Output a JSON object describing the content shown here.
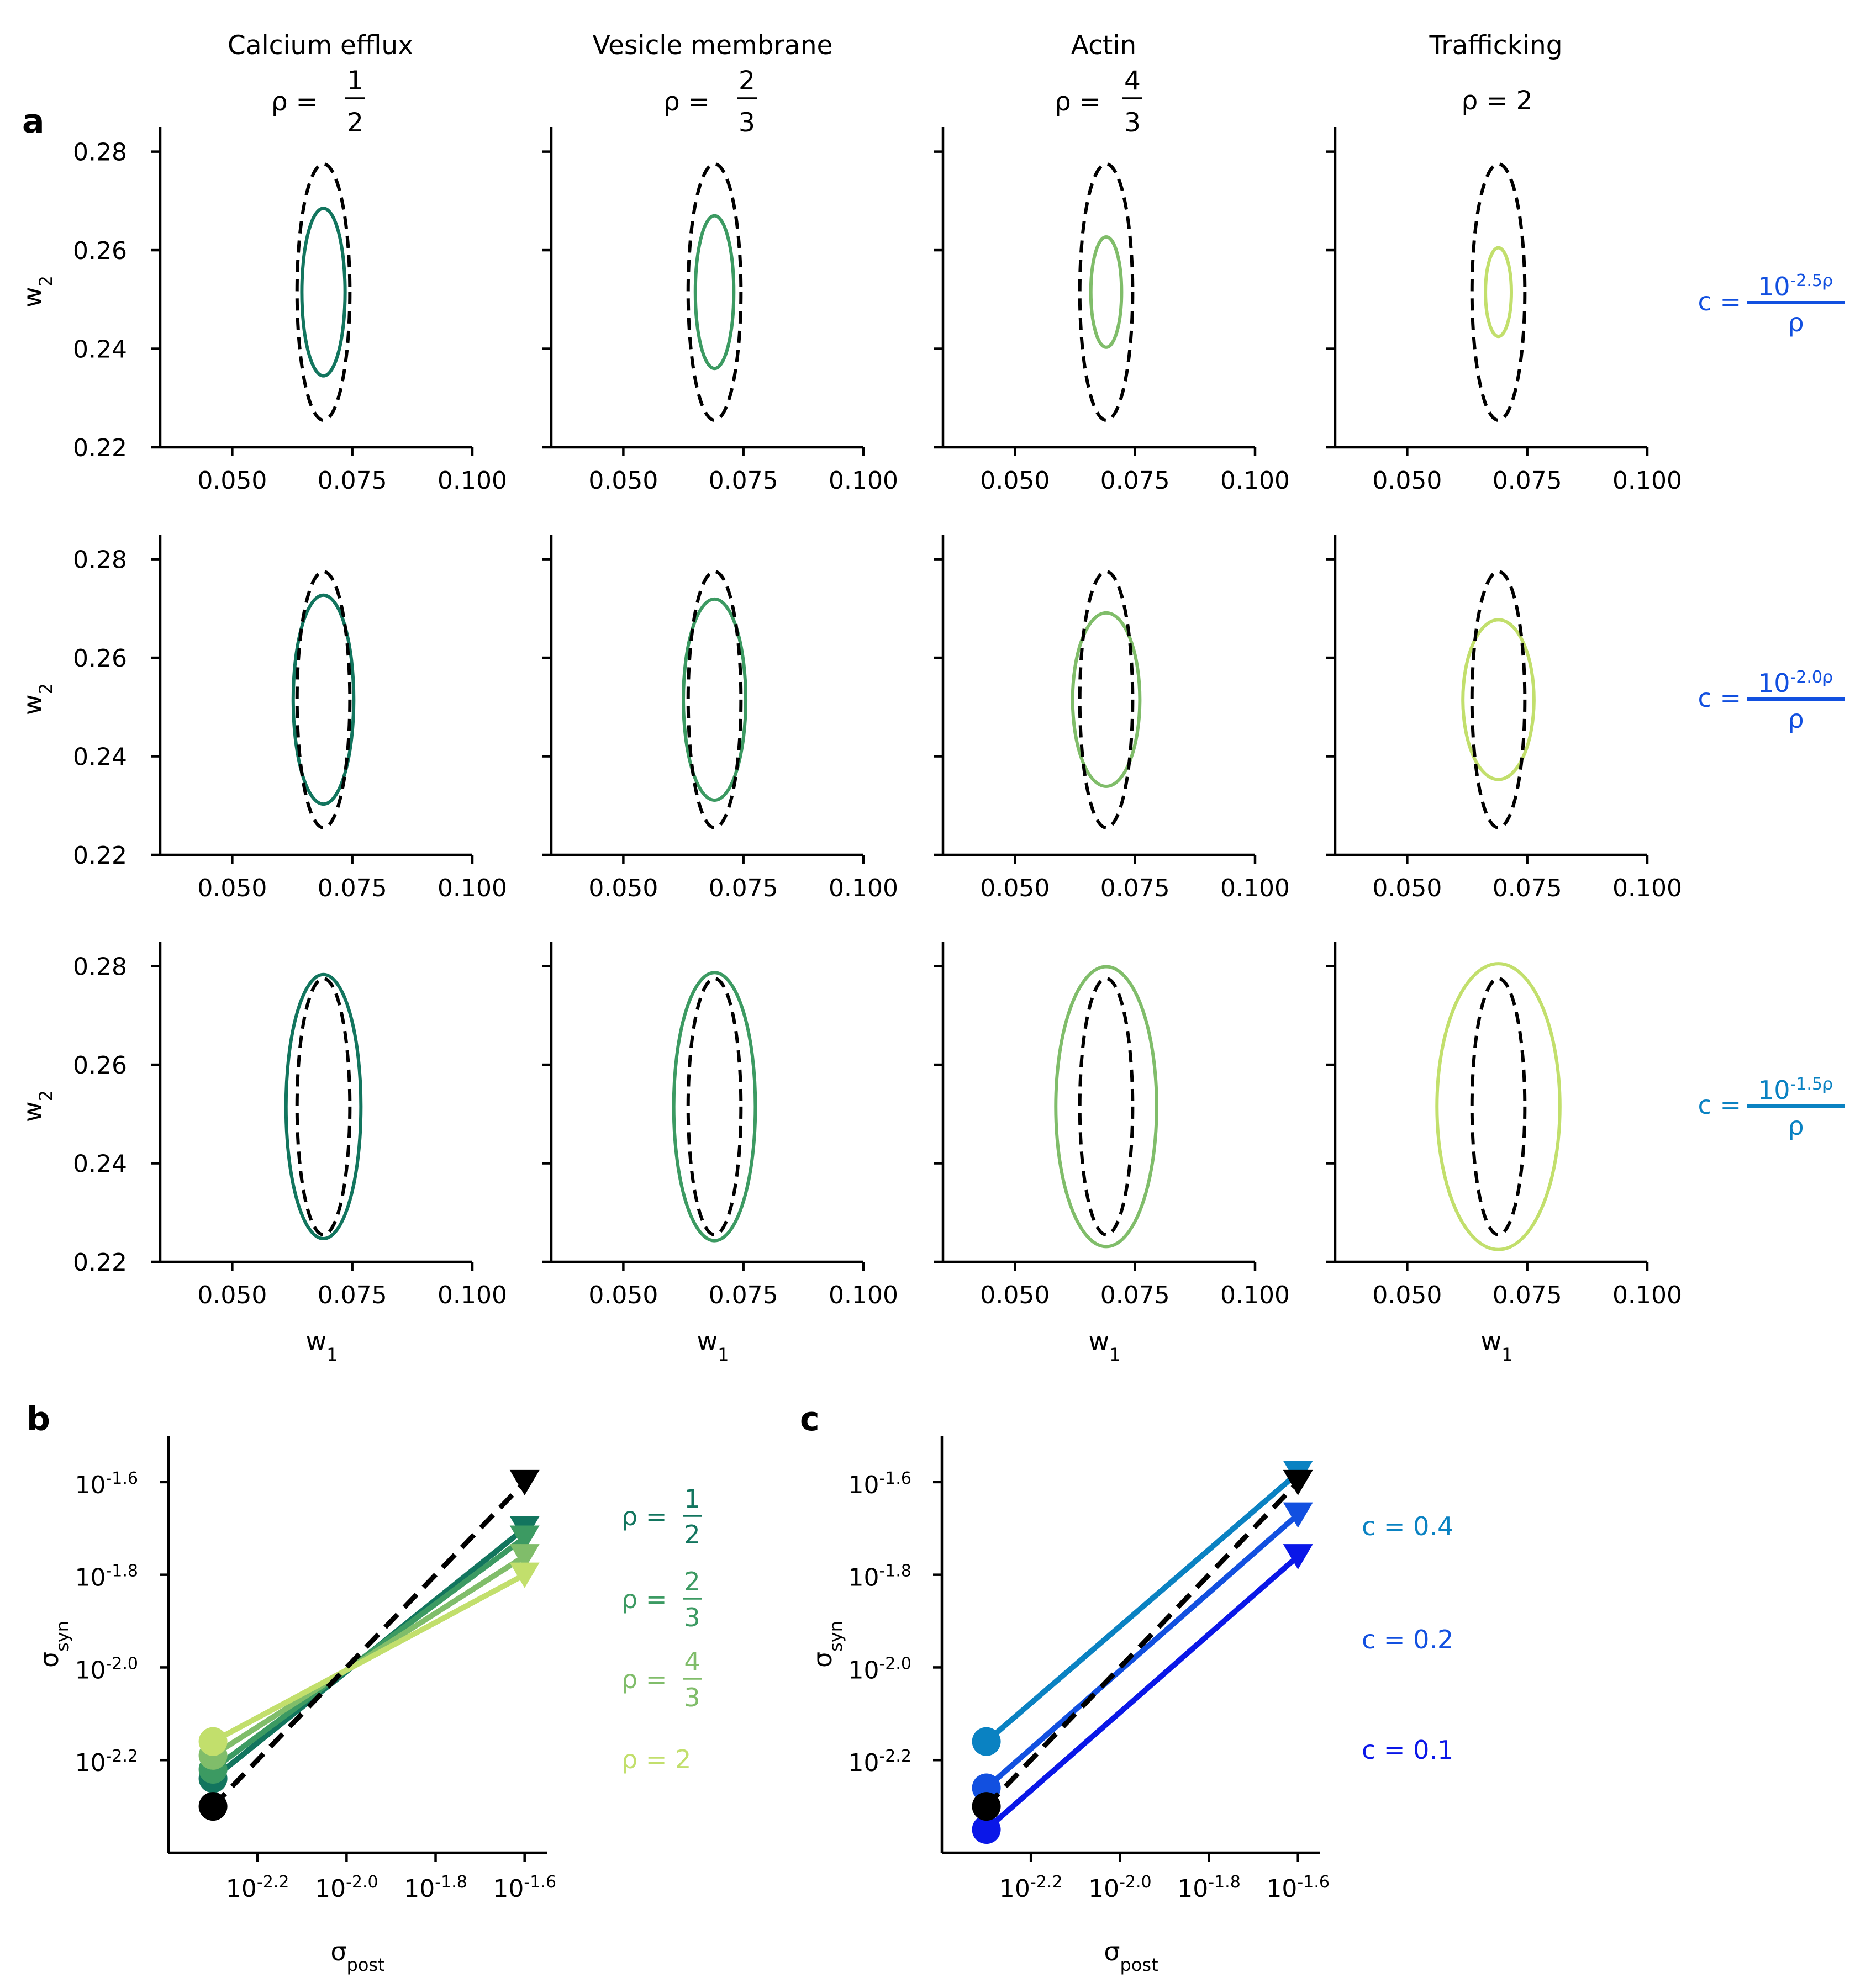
{
  "colors": {
    "calcium": "#12755e",
    "vesicle": "#3c9a62",
    "actin": "#80bd6a",
    "trafficking": "#c2df6c",
    "c_low": "#0a17e8",
    "c_mid": "#1250e0",
    "c_high": "#0a82c2",
    "black": "#000000"
  },
  "panel_a": {
    "letter": "a",
    "columns": [
      {
        "title": "Calcium efflux",
        "rho_prefix": "ρ = ",
        "rho_num": "1",
        "rho_den": "2",
        "rho_value": 0.5
      },
      {
        "title": "Vesicle membrane",
        "rho_prefix": "ρ = ",
        "rho_num": "2",
        "rho_den": "3",
        "rho_value": 0.6667
      },
      {
        "title": "Actin",
        "rho_prefix": "ρ = ",
        "rho_num": "4",
        "rho_den": "3",
        "rho_value": 1.3333
      },
      {
        "title": "Trafficking",
        "rho_prefix": "ρ = ",
        "rho_text": "ρ = 2",
        "rho_value": 2
      }
    ],
    "rows": [
      {
        "c_prefix": "c = ",
        "c_num": "10",
        "c_exp": "-2.5ρ",
        "c_den": "ρ"
      },
      {
        "c_prefix": "c = ",
        "c_num": "10",
        "c_exp": "-2.0ρ",
        "c_den": "ρ"
      },
      {
        "c_prefix": "c = ",
        "c_num": "10",
        "c_exp": "-1.5ρ",
        "c_den": "ρ"
      }
    ],
    "x_ticks": [
      "0.050",
      "0.075",
      "0.100"
    ],
    "y_ticks": [
      "0.22",
      "0.24",
      "0.26",
      "0.28"
    ],
    "x_label": "w",
    "x_label_sub": "1",
    "y_label": "w",
    "y_label_sub": "2"
  },
  "panel_b": {
    "letter": "b",
    "legend": [
      {
        "prefix": "ρ = ",
        "num": "1",
        "den": "2"
      },
      {
        "prefix": "ρ = ",
        "num": "2",
        "den": "3"
      },
      {
        "prefix": "ρ = ",
        "num": "4",
        "den": "3"
      },
      {
        "text": "ρ = 2"
      }
    ]
  },
  "panel_c": {
    "letter": "c",
    "legend": [
      "c = 0.4",
      "c = 0.2",
      "c = 0.1"
    ]
  },
  "log_axis": {
    "tick_base": "10",
    "x_tick_exps": [
      "-2.2",
      "-2.0",
      "-1.8",
      "-1.6"
    ],
    "y_tick_exps": [
      "-1.6",
      "-1.8",
      "-2.0",
      "-2.2"
    ],
    "x_label": "σ",
    "x_label_sub": "post",
    "y_label": "σ",
    "y_label_sub": "syn"
  },
  "chart_data": [
    {
      "type": "ellipse-grid",
      "panel": "a",
      "xlim": [
        0.035,
        0.1
      ],
      "ylim": [
        0.22,
        0.285
      ],
      "center": [
        0.069,
        0.2515
      ],
      "reference_ellipse": {
        "style": "dashed",
        "color": "black",
        "half_width": 0.0055,
        "half_height": 0.026
      },
      "ellipses": [
        [
          {
            "half_width": 0.0045,
            "half_height": 0.017
          },
          {
            "half_width": 0.004,
            "half_height": 0.0155
          },
          {
            "half_width": 0.0032,
            "half_height": 0.0112
          },
          {
            "half_width": 0.0027,
            "half_height": 0.009
          }
        ],
        [
          {
            "half_width": 0.0063,
            "half_height": 0.0212
          },
          {
            "half_width": 0.0065,
            "half_height": 0.0204
          },
          {
            "half_width": 0.007,
            "half_height": 0.0176
          },
          {
            "half_width": 0.0074,
            "half_height": 0.0162
          }
        ],
        [
          {
            "half_width": 0.0078,
            "half_height": 0.0268
          },
          {
            "half_width": 0.0085,
            "half_height": 0.0272
          },
          {
            "half_width": 0.0105,
            "half_height": 0.0284
          },
          {
            "half_width": 0.0128,
            "half_height": 0.029
          }
        ]
      ]
    },
    {
      "type": "line",
      "panel": "b",
      "x_scale": "log10",
      "y_scale": "log10",
      "xlim": [
        -2.4,
        -1.55
      ],
      "ylim": [
        -2.4,
        -1.5
      ],
      "series": [
        {
          "name": "ρ = 1/2",
          "x": [
            -2.3,
            -1.6
          ],
          "y": [
            -2.24,
            -1.7
          ]
        },
        {
          "name": "ρ = 2/3",
          "x": [
            -2.3,
            -1.6
          ],
          "y": [
            -2.22,
            -1.72
          ]
        },
        {
          "name": "ρ = 4/3",
          "x": [
            -2.3,
            -1.6
          ],
          "y": [
            -2.19,
            -1.76
          ]
        },
        {
          "name": "ρ = 2",
          "x": [
            -2.3,
            -1.6
          ],
          "y": [
            -2.16,
            -1.8
          ]
        },
        {
          "name": "reference",
          "style": "dashed",
          "x": [
            -2.3,
            -1.6
          ],
          "y": [
            -2.3,
            -1.6
          ]
        }
      ]
    },
    {
      "type": "line",
      "panel": "c",
      "x_scale": "log10",
      "y_scale": "log10",
      "xlim": [
        -2.4,
        -1.55
      ],
      "ylim": [
        -2.4,
        -1.5
      ],
      "series": [
        {
          "name": "c = 0.4",
          "x": [
            -2.3,
            -1.6
          ],
          "y": [
            -2.16,
            -1.58
          ]
        },
        {
          "name": "c = 0.2",
          "x": [
            -2.3,
            -1.6
          ],
          "y": [
            -2.26,
            -1.67
          ]
        },
        {
          "name": "c = 0.1",
          "x": [
            -2.3,
            -1.6
          ],
          "y": [
            -2.35,
            -1.76
          ]
        },
        {
          "name": "reference",
          "style": "dashed",
          "x": [
            -2.3,
            -1.6
          ],
          "y": [
            -2.3,
            -1.6
          ]
        }
      ]
    }
  ]
}
